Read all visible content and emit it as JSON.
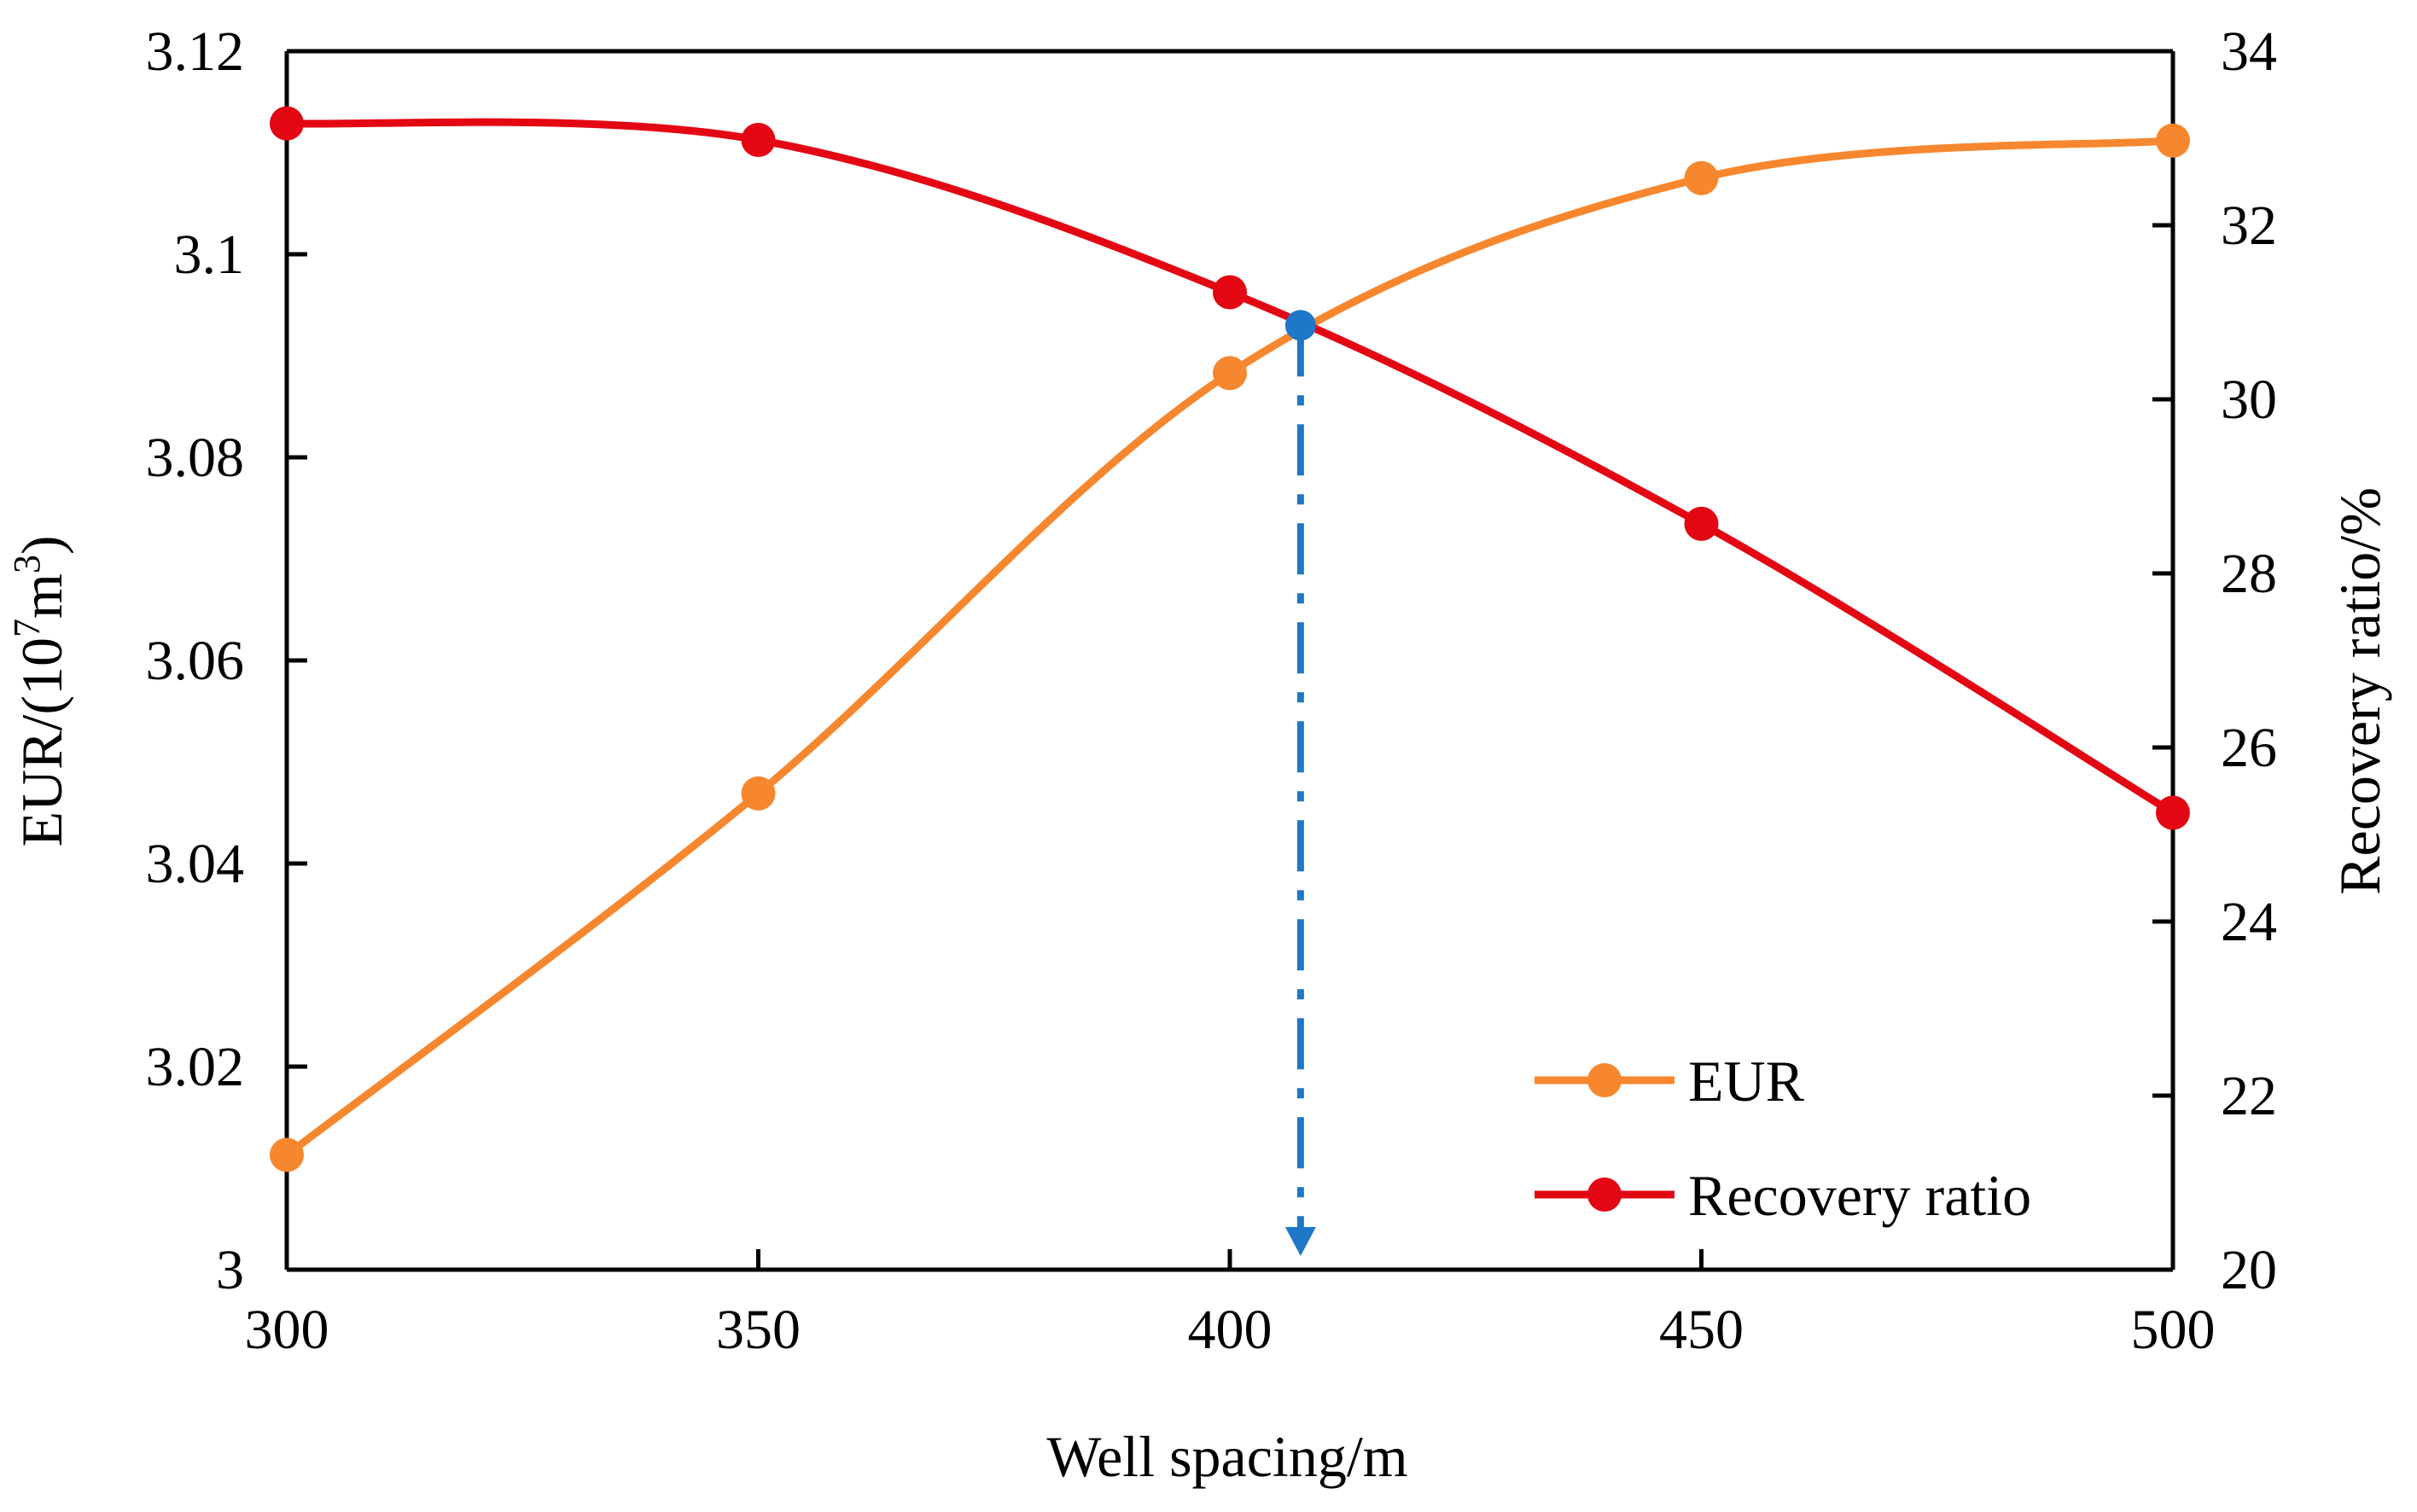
{
  "chart_data": {
    "type": "line",
    "title": "",
    "xlabel": "Well spacing/m",
    "ylabel_left": {
      "main": "EUR/(10",
      "sup": "7",
      "mid": "m",
      "sup2": "3",
      "end": ")"
    },
    "ylabel_right": "Recovery ratio/%",
    "x": [
      300,
      350,
      400,
      450,
      500
    ],
    "xlim": [
      300,
      500
    ],
    "x_ticks": [
      "300",
      "350",
      "400",
      "450",
      "500"
    ],
    "ylim_left": [
      3.0,
      3.12
    ],
    "y_ticks_left": [
      "3",
      "3.02",
      "3.04",
      "3.06",
      "3.08",
      "3.1",
      "3.12"
    ],
    "ylim_right": [
      20,
      34
    ],
    "y_ticks_right": [
      "20",
      "22",
      "24",
      "26",
      "28",
      "30",
      "32",
      "34"
    ],
    "grid": false,
    "legend_position": "bottom-right",
    "series": [
      {
        "name": "EUR",
        "axis": "left",
        "color": "#F7872E",
        "values": [
          3.0113,
          3.0469,
          3.0883,
          3.1075,
          3.1112
        ]
      },
      {
        "name": "Recovery ratio",
        "axis": "right",
        "color": "#E30613",
        "values": [
          33.17,
          32.98,
          31.23,
          28.57,
          25.25
        ]
      }
    ],
    "intersection": {
      "x": 407.5,
      "y_left": 3.093,
      "color": "#1F77C8"
    }
  }
}
